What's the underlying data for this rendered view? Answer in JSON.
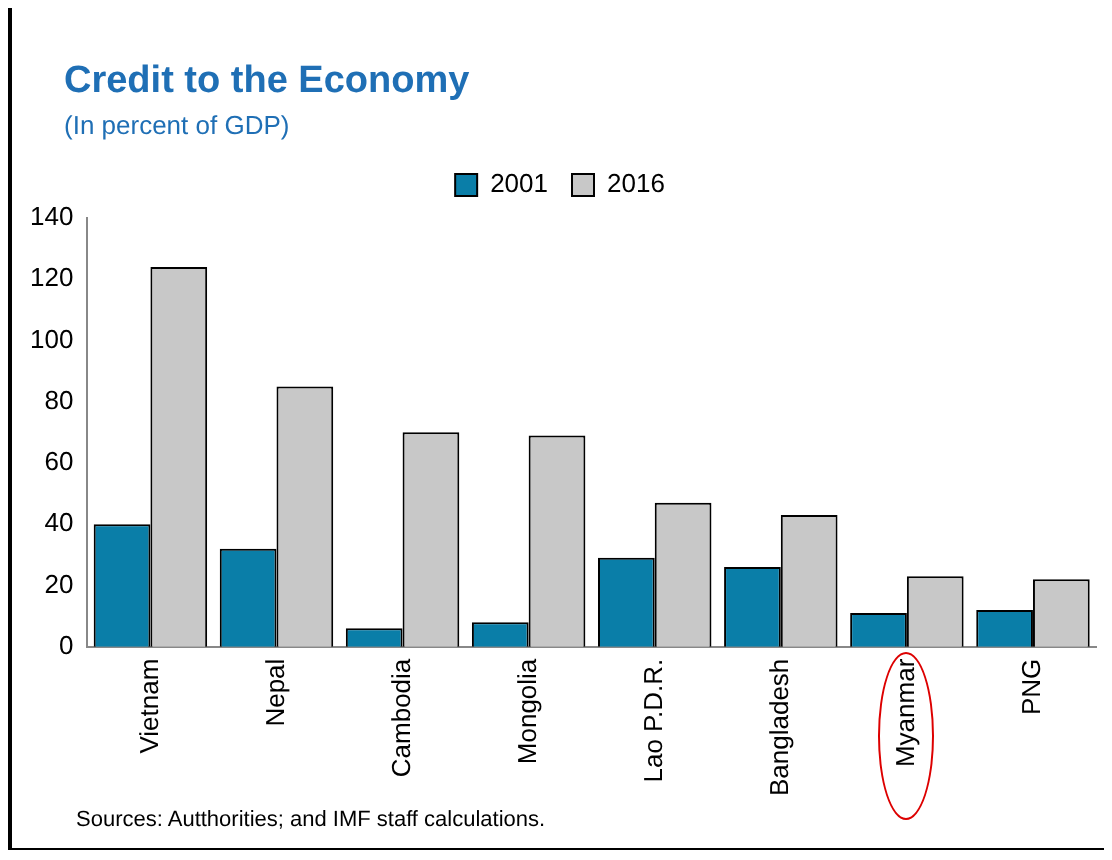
{
  "chart_data": {
    "type": "bar",
    "title": "Credit to the Economy",
    "subtitle": "(In percent of GDP)",
    "categories": [
      "Vietnam",
      "Nepal",
      "Cambodia",
      "Mongolia",
      "Lao P.D.R.",
      "Bangladesh",
      "Myanmar",
      "PNG"
    ],
    "series": [
      {
        "name": "2001",
        "color": "#0a7ea8",
        "values": [
          40,
          32,
          6,
          8,
          29,
          26,
          11,
          12
        ]
      },
      {
        "name": "2016",
        "color": "#c8c8c8",
        "values": [
          124,
          85,
          70,
          69,
          47,
          43,
          23,
          22
        ]
      }
    ],
    "ylim": [
      0,
      140
    ],
    "yticks": [
      0,
      20,
      40,
      60,
      80,
      100,
      120,
      140
    ],
    "grid": false,
    "legend": "top",
    "annotations": [
      "Sources: Autthorities; and IMF staff calculations."
    ]
  }
}
